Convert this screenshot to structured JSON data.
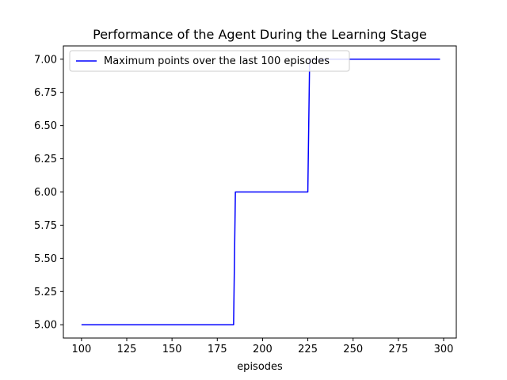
{
  "chart_data": {
    "type": "line",
    "title": "Performance of the Agent During the Learning Stage",
    "xlabel": "episodes",
    "ylabel": "",
    "xlim": [
      90,
      307
    ],
    "ylim": [
      4.9,
      7.1
    ],
    "x_ticks": [
      100,
      125,
      150,
      175,
      200,
      225,
      250,
      275,
      300
    ],
    "x_tick_labels": [
      "100",
      "125",
      "150",
      "175",
      "200",
      "225",
      "250",
      "275",
      "300"
    ],
    "y_ticks": [
      5.0,
      5.25,
      5.5,
      5.75,
      6.0,
      6.25,
      6.5,
      6.75,
      7.0
    ],
    "y_tick_labels": [
      "5.00",
      "5.25",
      "5.50",
      "5.75",
      "6.00",
      "6.25",
      "6.50",
      "6.75",
      "7.00"
    ],
    "grid": false,
    "legend_position": "upper-left",
    "series": [
      {
        "name": "Maximum points over the last 100 episodes",
        "color": "#0000ff",
        "x": [
          100,
          184,
          185,
          225,
          226,
          298
        ],
        "y": [
          5,
          5,
          6,
          6,
          7,
          7
        ]
      }
    ]
  }
}
